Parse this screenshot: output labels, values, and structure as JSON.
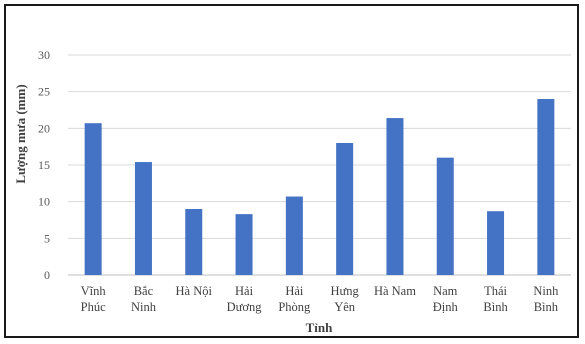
{
  "chart_data": {
    "type": "bar",
    "categories": [
      [
        "Vĩnh",
        "Phúc"
      ],
      [
        "Bắc",
        "Ninh"
      ],
      [
        "Hà Nội"
      ],
      [
        "Hải",
        "Dương"
      ],
      [
        "Hải",
        "Phòng"
      ],
      [
        "Hưng",
        "Yên"
      ],
      [
        "Hà Nam"
      ],
      [
        "Nam",
        "Định"
      ],
      [
        "Thái",
        "Bình"
      ],
      [
        "Ninh",
        "Bình"
      ]
    ],
    "values": [
      20.7,
      15.4,
      9.0,
      8.3,
      10.7,
      18.0,
      21.4,
      16.0,
      8.7,
      24.0
    ],
    "xlabel": "Tỉnh",
    "ylabel": "Lượng mưa (mm)",
    "ylim": [
      0,
      30
    ],
    "yticks": [
      0,
      5,
      10,
      15,
      20,
      25,
      30
    ],
    "grid": true,
    "legend": "none",
    "bar_color": "#4472c4"
  }
}
